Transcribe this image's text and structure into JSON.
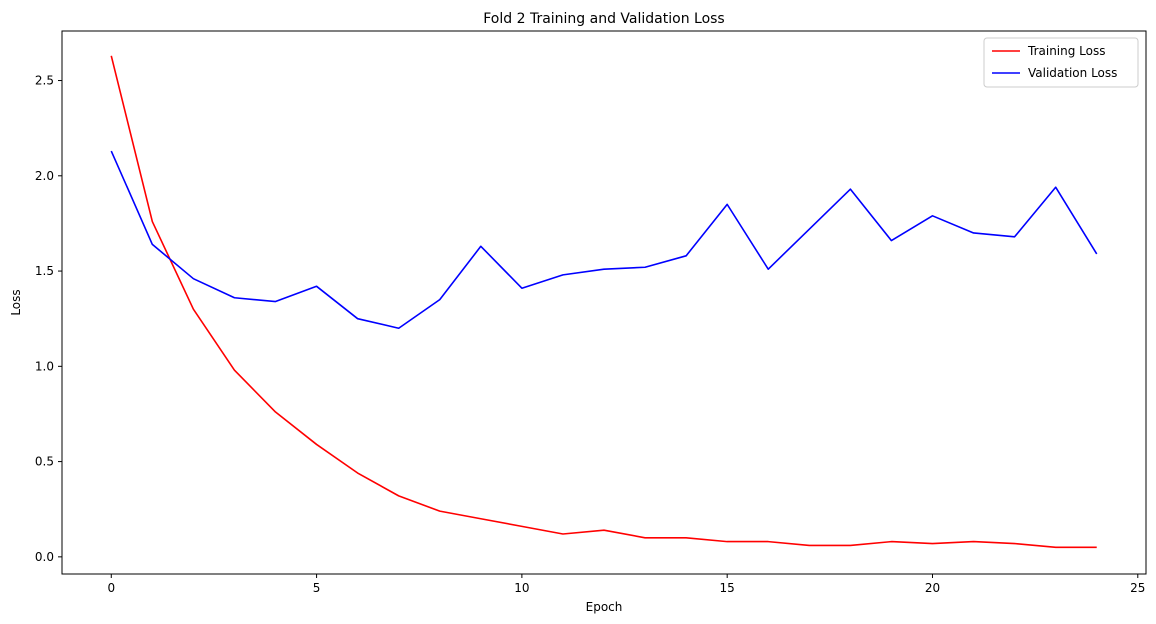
{
  "chart_data": {
    "type": "line",
    "title": "Fold 2 Training and Validation Loss",
    "xlabel": "Epoch",
    "ylabel": "Loss",
    "xlim": [
      -1.2,
      25.2
    ],
    "ylim": [
      -0.09,
      2.76
    ],
    "x_ticks": [
      0,
      5,
      10,
      15,
      20,
      25
    ],
    "y_ticks": [
      0.0,
      0.5,
      1.0,
      1.5,
      2.0,
      2.5
    ],
    "x_tick_labels": [
      "0",
      "5",
      "10",
      "15",
      "20",
      "25"
    ],
    "y_tick_labels": [
      "0.0",
      "0.5",
      "1.0",
      "1.5",
      "2.0",
      "2.5"
    ],
    "grid": false,
    "legend": "top-right",
    "x": [
      0,
      1,
      2,
      3,
      4,
      5,
      6,
      7,
      8,
      9,
      10,
      11,
      12,
      13,
      14,
      15,
      16,
      17,
      18,
      19,
      20,
      21,
      22,
      23,
      24
    ],
    "series": [
      {
        "name": "Training Loss",
        "color": "#ff0000",
        "values": [
          2.63,
          1.76,
          1.3,
          0.98,
          0.76,
          0.59,
          0.44,
          0.32,
          0.24,
          0.2,
          0.16,
          0.12,
          0.14,
          0.1,
          0.1,
          0.08,
          0.08,
          0.06,
          0.06,
          0.08,
          0.07,
          0.08,
          0.07,
          0.05,
          0.05
        ]
      },
      {
        "name": "Validation Loss",
        "color": "#0000ff",
        "values": [
          2.13,
          1.64,
          1.46,
          1.36,
          1.34,
          1.42,
          1.25,
          1.2,
          1.35,
          1.63,
          1.41,
          1.48,
          1.51,
          1.52,
          1.58,
          1.85,
          1.51,
          1.72,
          1.93,
          1.66,
          1.79,
          1.7,
          1.68,
          1.94,
          1.59
        ]
      }
    ]
  }
}
